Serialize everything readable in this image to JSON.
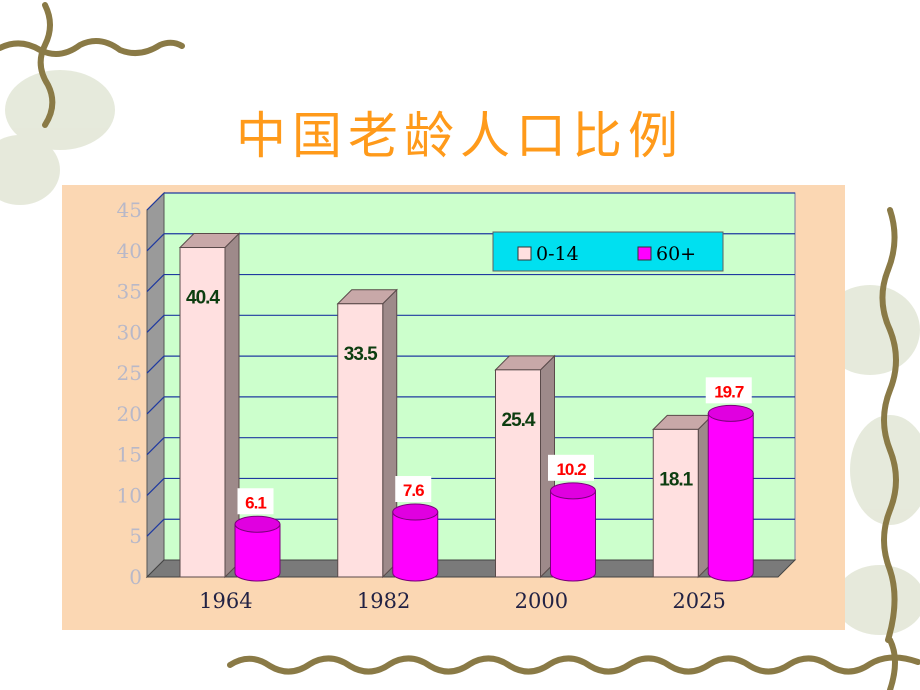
{
  "slide": {
    "title": "中国老龄人口比例"
  },
  "colors": {
    "title": "#ff9a1a",
    "panel": "#fbd7b3",
    "plot_wall": "#ccffcc",
    "gridline": "#1f3aa0",
    "series_0_14": "#ffe0e0",
    "series_60plus": "#ff00ff",
    "legend_bg": "#00e0f0",
    "label_0_14": "#0d3d10",
    "label_60plus": "#ff0000"
  },
  "chart_data": {
    "type": "bar",
    "style": "3d-clustered-column",
    "title": "中国老龄人口比例",
    "categories": [
      "1964",
      "1982",
      "2000",
      "2025"
    ],
    "series": [
      {
        "name": "0-14",
        "values": [
          40.4,
          33.5,
          25.4,
          18.1
        ],
        "labels": [
          "40.4",
          "33.5",
          "25.4",
          "18.1"
        ],
        "shape": "box"
      },
      {
        "name": "60+",
        "values": [
          6.1,
          7.6,
          10.2,
          19.7
        ],
        "labels": [
          "6.1",
          "7.6",
          "10.2",
          "19.7"
        ],
        "shape": "cylinder"
      }
    ],
    "ylim": [
      0,
      45
    ],
    "yticks": [
      "0",
      "5",
      "10",
      "15",
      "20",
      "25",
      "30",
      "35",
      "40",
      "45"
    ],
    "grid": true,
    "legend_position": "top-right"
  }
}
